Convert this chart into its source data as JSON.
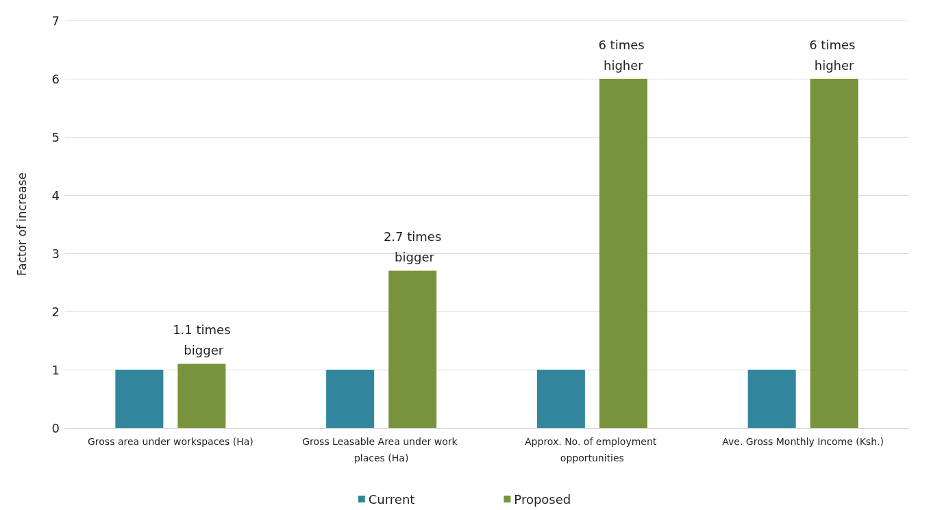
{
  "chart_data": {
    "type": "bar",
    "ylabel": "Factor of increase",
    "categories": [
      "Gross area under workspaces (Ha)",
      "Gross Leasable Area under work places (Ha)",
      "Approx. No. of employment opportunities",
      "Ave. Gross Monthly Income (Ksh.)"
    ],
    "series": [
      {
        "name": "Current",
        "color": "#31859c",
        "values": [
          1,
          1,
          1,
          1
        ]
      },
      {
        "name": "Proposed",
        "color": "#77933c",
        "values": [
          1.1,
          2.7,
          6,
          6
        ]
      }
    ],
    "ylim": [
      0,
      7
    ],
    "yticks": [
      0,
      1,
      2,
      3,
      4,
      5,
      6,
      7
    ],
    "grid": "y",
    "legend": "bottom",
    "annotations": [
      "1.1 times bigger",
      "2.7 times bigger",
      "6 times higher",
      "6 times higher"
    ]
  }
}
